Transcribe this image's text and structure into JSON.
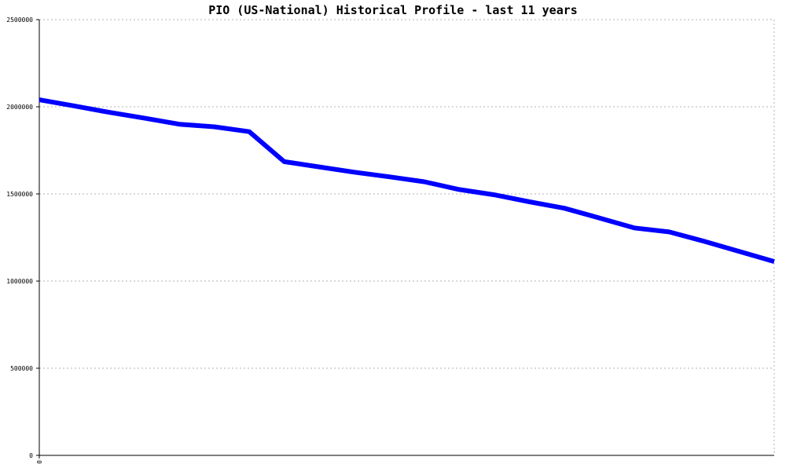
{
  "chart_data": {
    "type": "line",
    "title": "PIO (US-National) Historical Profile - last 11 years",
    "xlabel": "",
    "ylabel": "",
    "ylim": [
      0,
      2500000
    ],
    "yticks": [
      "0",
      "500000",
      "1000000",
      "1500000",
      "2000000",
      "2500000"
    ],
    "xticks": [
      "0"
    ],
    "grid": true,
    "series": [
      {
        "color": "#0000ff",
        "x": [
          0,
          0.0476,
          0.0952,
          0.1429,
          0.1905,
          0.2381,
          0.2857,
          0.3333,
          0.381,
          0.4286,
          0.4762,
          0.5238,
          0.5714,
          0.619,
          0.6667,
          0.7143,
          0.7619,
          0.8095,
          0.8571,
          0.9048,
          0.9524,
          1.0
        ],
        "values": [
          2040000,
          2005000,
          1968000,
          1935000,
          1900000,
          1885000,
          1857000,
          1685000,
          1655000,
          1625000,
          1598000,
          1570000,
          1525000,
          1495000,
          1455000,
          1418000,
          1362000,
          1305000,
          1282000,
          1228000,
          1170000,
          1112000
        ]
      }
    ]
  }
}
